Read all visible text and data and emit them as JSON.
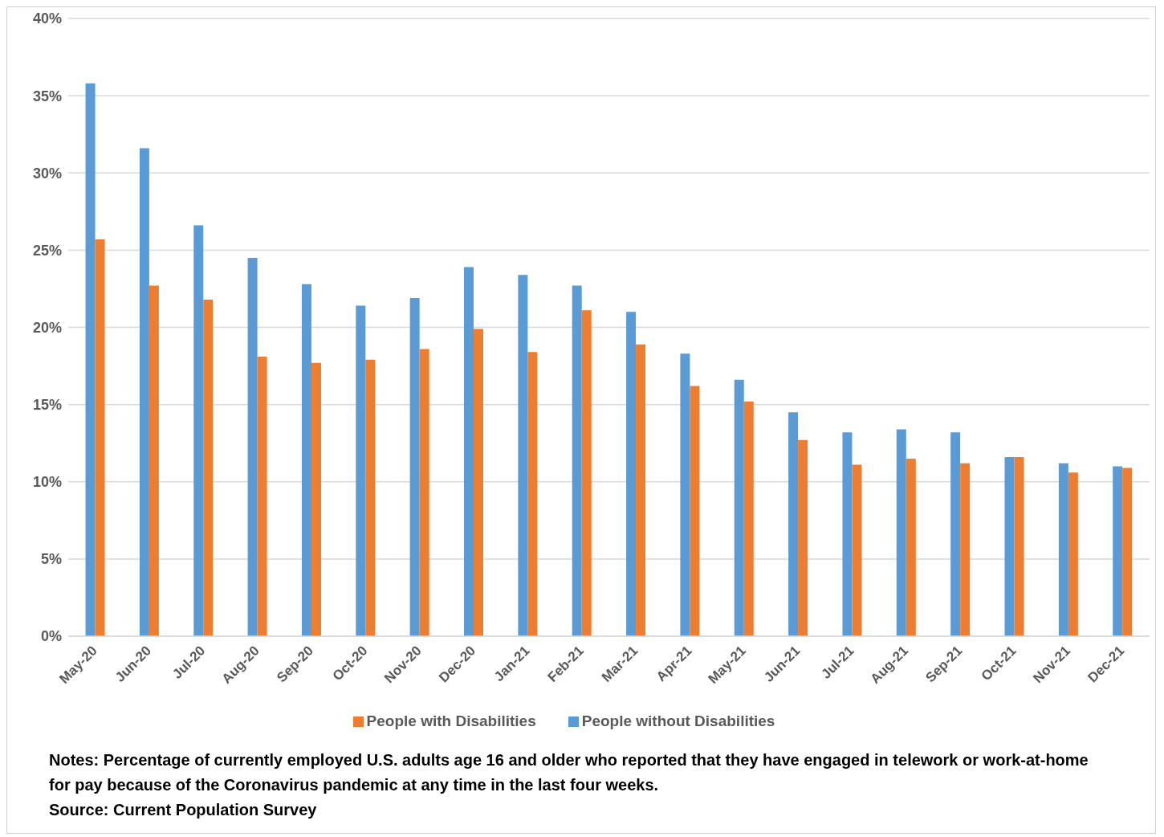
{
  "chart_data": {
    "type": "bar",
    "categories": [
      "May-20",
      "Jun-20",
      "Jul-20",
      "Aug-20",
      "Sep-20",
      "Oct-20",
      "Nov-20",
      "Dec-20",
      "Jan-21",
      "Feb-21",
      "Mar-21",
      "Apr-21",
      "May-21",
      "Jun-21",
      "Jul-21",
      "Aug-21",
      "Sep-21",
      "Oct-21",
      "Nov-21",
      "Dec-21"
    ],
    "series": [
      {
        "name": "People without Disabilities",
        "color": "#5b9bd5",
        "values": [
          35.8,
          31.6,
          26.6,
          24.5,
          22.8,
          21.4,
          21.9,
          23.9,
          23.4,
          22.7,
          21.0,
          18.3,
          16.6,
          14.5,
          13.2,
          13.4,
          13.2,
          11.6,
          11.2,
          11.0
        ]
      },
      {
        "name": "People with Disabilities",
        "color": "#ed7d31",
        "values": [
          25.7,
          22.7,
          21.8,
          18.1,
          17.7,
          17.9,
          18.6,
          19.9,
          18.4,
          21.1,
          18.9,
          16.2,
          15.2,
          12.7,
          11.1,
          11.5,
          11.2,
          11.6,
          10.6,
          10.9
        ]
      }
    ],
    "ylim": [
      0,
      40
    ],
    "yticks": [
      {
        "value": 0,
        "label": "0%"
      },
      {
        "value": 5,
        "label": "5%"
      },
      {
        "value": 10,
        "label": "10%"
      },
      {
        "value": 15,
        "label": "15%"
      },
      {
        "value": 20,
        "label": "20%"
      },
      {
        "value": 25,
        "label": "25%"
      },
      {
        "value": 30,
        "label": "30%"
      },
      {
        "value": 35,
        "label": "35%"
      },
      {
        "value": 40,
        "label": "40%"
      }
    ],
    "grid": "y",
    "legend": "bottom",
    "annotations": [
      "Notes: Percentage of currently employed U.S. adults age 16 and older who reported that they have engaged in telework or work-at-home for pay because of the Coronavirus pandemic at any time in the last four weeks.",
      "Source: Current Population Survey"
    ]
  }
}
